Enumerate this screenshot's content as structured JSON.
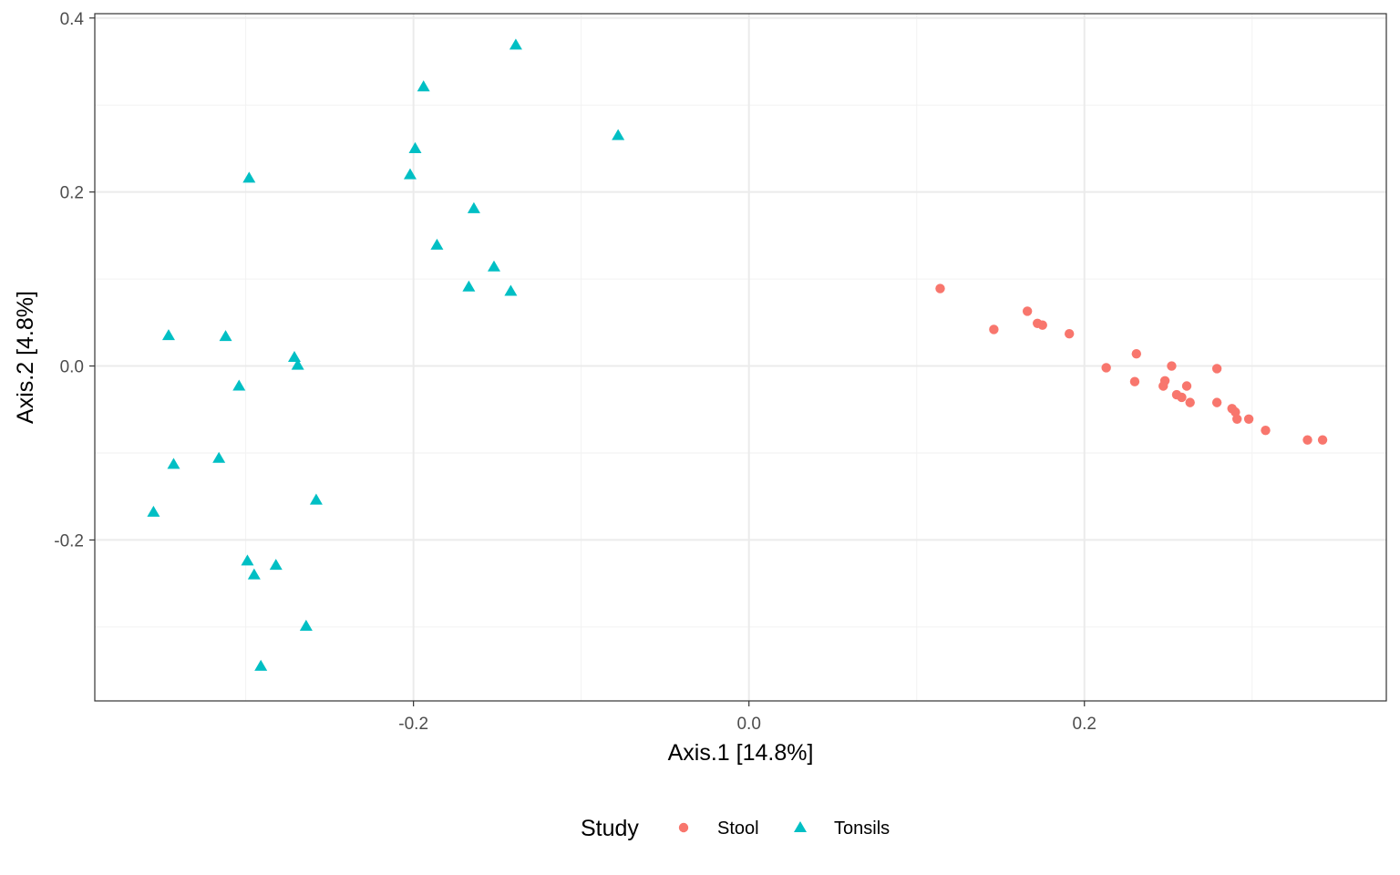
{
  "chart_data": {
    "type": "scatter",
    "xlabel": "Axis.1   [14.8%]",
    "ylabel": "Axis.2   [4.8%]",
    "xlim": [
      -0.39,
      0.38
    ],
    "ylim": [
      -0.385,
      0.405
    ],
    "x_ticks": [
      -0.2,
      0.0,
      0.2
    ],
    "x_tick_labels": [
      "-0.2",
      "0.0",
      "0.2"
    ],
    "y_ticks": [
      -0.2,
      0.0,
      0.2,
      0.4
    ],
    "y_tick_labels": [
      "-0.2",
      "0.0",
      "0.2",
      "0.4"
    ],
    "grid": true,
    "legend": {
      "title": "Study",
      "position": "bottom"
    },
    "series": [
      {
        "name": "Stool",
        "marker": "circle",
        "color": "#F8766D",
        "points": [
          [
            0.114,
            0.089
          ],
          [
            0.146,
            0.042
          ],
          [
            0.166,
            0.063
          ],
          [
            0.172,
            0.049
          ],
          [
            0.175,
            0.047
          ],
          [
            0.191,
            0.037
          ],
          [
            0.213,
            -0.002
          ],
          [
            0.231,
            0.014
          ],
          [
            0.23,
            -0.018
          ],
          [
            0.248,
            -0.017
          ],
          [
            0.247,
            -0.023
          ],
          [
            0.252,
            0.0
          ],
          [
            0.255,
            -0.033
          ],
          [
            0.258,
            -0.036
          ],
          [
            0.261,
            -0.023
          ],
          [
            0.263,
            -0.042
          ],
          [
            0.279,
            -0.003
          ],
          [
            0.279,
            -0.042
          ],
          [
            0.288,
            -0.049
          ],
          [
            0.29,
            -0.053
          ],
          [
            0.291,
            -0.061
          ],
          [
            0.298,
            -0.061
          ],
          [
            0.308,
            -0.074
          ],
          [
            0.333,
            -0.085
          ],
          [
            0.342,
            -0.085
          ]
        ]
      },
      {
        "name": "Tonsils",
        "marker": "triangle",
        "color": "#00BFC4",
        "points": [
          [
            -0.139,
            0.369
          ],
          [
            -0.194,
            0.321
          ],
          [
            -0.199,
            0.25
          ],
          [
            -0.202,
            0.22
          ],
          [
            -0.078,
            0.265
          ],
          [
            -0.298,
            0.216
          ],
          [
            -0.164,
            0.181
          ],
          [
            -0.186,
            0.139
          ],
          [
            -0.152,
            0.114
          ],
          [
            -0.167,
            0.091
          ],
          [
            -0.142,
            0.086
          ],
          [
            -0.346,
            0.035
          ],
          [
            -0.312,
            0.034
          ],
          [
            -0.271,
            0.01
          ],
          [
            -0.269,
            0.001
          ],
          [
            -0.304,
            -0.023
          ],
          [
            -0.343,
            -0.113
          ],
          [
            -0.316,
            -0.106
          ],
          [
            -0.258,
            -0.154
          ],
          [
            -0.355,
            -0.168
          ],
          [
            -0.299,
            -0.224
          ],
          [
            -0.295,
            -0.24
          ],
          [
            -0.282,
            -0.229
          ],
          [
            -0.264,
            -0.299
          ],
          [
            -0.291,
            -0.345
          ]
        ]
      }
    ]
  }
}
